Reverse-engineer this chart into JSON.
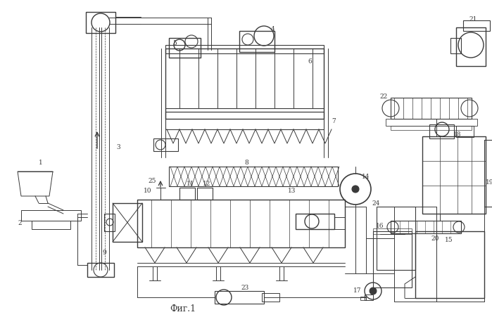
{
  "title": "Фиг.1",
  "bg_color": "#ffffff",
  "line_color": "#3a3a3a",
  "fig_width": 6.99,
  "fig_height": 4.52,
  "dpi": 100
}
